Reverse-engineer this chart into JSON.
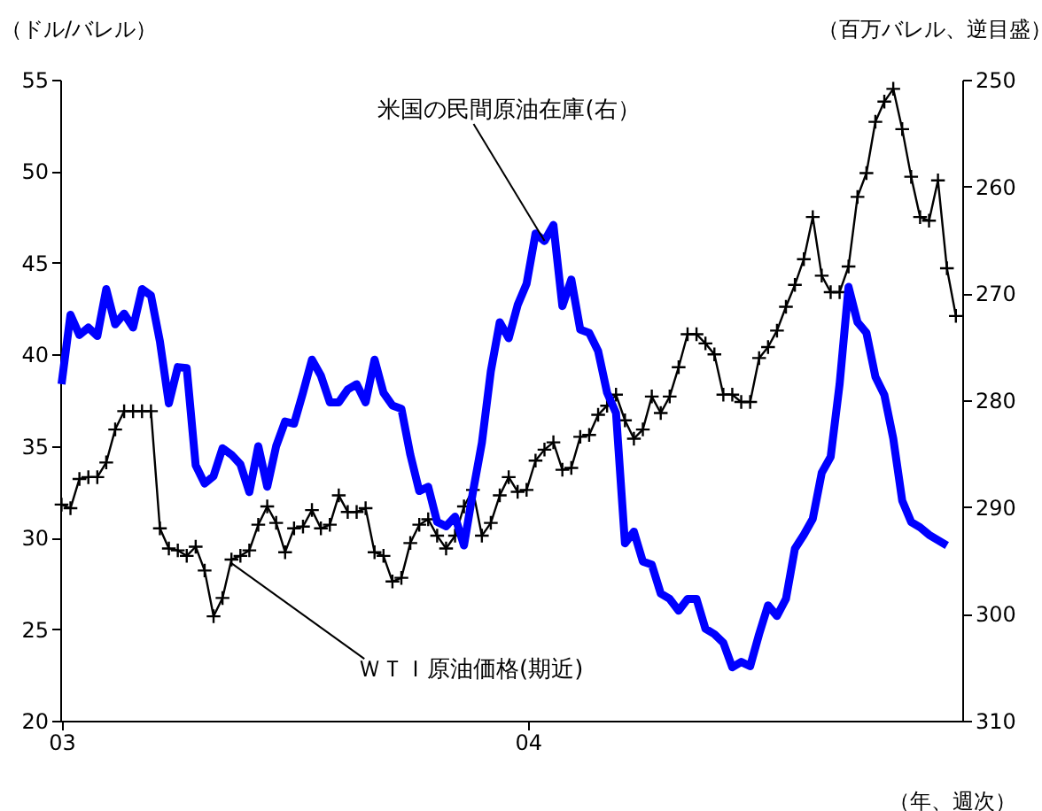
{
  "chart_data": {
    "type": "line",
    "ylabel": "（ドル/バレル）",
    "y2label": "（百万バレル、逆目盛）",
    "xlabel": "（年、週次）",
    "xlim": [
      "2002-12-31",
      "2004-12-06"
    ],
    "xticks": [
      {
        "value": "2003-01-01",
        "label": "03"
      },
      {
        "value": "2004-01-01",
        "label": "04"
      }
    ],
    "ylim": [
      20,
      55
    ],
    "yticks": [
      20,
      25,
      30,
      35,
      40,
      45,
      50,
      55
    ],
    "y2lim": [
      310,
      250
    ],
    "y2ticks": [
      250,
      260,
      270,
      280,
      290,
      300,
      310
    ],
    "grid": false,
    "x": [
      "2003-01-01",
      "2003-01-08",
      "2003-01-15",
      "2003-01-22",
      "2003-01-29",
      "2003-02-05",
      "2003-02-12",
      "2003-02-19",
      "2003-02-26",
      "2003-03-05",
      "2003-03-12",
      "2003-03-19",
      "2003-03-26",
      "2003-04-02",
      "2003-04-09",
      "2003-04-16",
      "2003-04-23",
      "2003-04-30",
      "2003-05-07",
      "2003-05-14",
      "2003-05-21",
      "2003-05-28",
      "2003-06-04",
      "2003-06-11",
      "2003-06-18",
      "2003-06-25",
      "2003-07-02",
      "2003-07-09",
      "2003-07-16",
      "2003-07-23",
      "2003-07-30",
      "2003-08-06",
      "2003-08-13",
      "2003-08-20",
      "2003-08-27",
      "2003-09-03",
      "2003-09-10",
      "2003-09-17",
      "2003-09-24",
      "2003-10-01",
      "2003-10-08",
      "2003-10-15",
      "2003-10-22",
      "2003-10-29",
      "2003-11-05",
      "2003-11-12",
      "2003-11-19",
      "2003-11-26",
      "2003-12-03",
      "2003-12-10",
      "2003-12-17",
      "2003-12-24",
      "2003-12-31",
      "2004-01-07",
      "2004-01-14",
      "2004-01-21",
      "2004-01-28",
      "2004-02-04",
      "2004-02-11",
      "2004-02-18",
      "2004-02-25",
      "2004-03-03",
      "2004-03-10",
      "2004-03-17",
      "2004-03-24",
      "2004-03-31",
      "2004-04-07",
      "2004-04-14",
      "2004-04-21",
      "2004-04-28",
      "2004-05-05",
      "2004-05-12",
      "2004-05-19",
      "2004-05-26",
      "2004-06-02",
      "2004-06-09",
      "2004-06-16",
      "2004-06-23",
      "2004-06-30",
      "2004-07-07",
      "2004-07-14",
      "2004-07-21",
      "2004-07-28",
      "2004-08-04",
      "2004-08-11",
      "2004-08-18",
      "2004-08-25",
      "2004-09-01",
      "2004-09-08",
      "2004-09-15",
      "2004-09-22",
      "2004-09-29",
      "2004-10-06",
      "2004-10-13",
      "2004-10-20",
      "2004-10-27",
      "2004-11-03",
      "2004-11-10",
      "2004-11-17",
      "2004-11-24",
      "2004-12-01"
    ],
    "series": [
      {
        "color": "#000000",
        "marker": "cross",
        "line_style": "solid",
        "values": [
          31.8,
          31.6,
          33.2,
          33.3,
          33.3,
          34.1,
          35.9,
          36.9,
          36.9,
          36.9,
          36.9,
          30.5,
          29.4,
          29.3,
          29.0,
          29.5,
          28.2,
          25.7,
          26.7,
          28.8,
          29.0,
          29.3,
          30.7,
          31.7,
          30.8,
          29.2,
          30.5,
          30.6,
          31.5,
          30.5,
          30.7,
          32.3,
          31.4,
          31.4,
          31.6,
          29.2,
          29.0,
          27.6,
          27.8,
          29.7,
          30.7,
          31.0,
          30.1,
          29.4,
          30.1,
          31.7,
          32.6,
          30.1,
          30.8,
          32.3,
          33.3,
          32.5,
          32.6,
          34.2,
          34.8,
          35.2,
          33.7,
          33.8,
          35.5,
          35.6,
          36.7,
          37.2,
          37.8,
          36.4,
          35.4,
          35.9,
          37.7,
          36.8,
          37.7,
          39.3,
          41.1,
          41.1,
          40.6,
          40.0,
          37.8,
          37.8,
          37.4,
          37.4,
          39.8,
          40.4,
          41.3,
          42.6,
          43.8,
          45.2,
          47.5,
          44.3,
          43.4,
          43.4,
          44.8,
          48.6,
          49.9,
          52.7,
          53.8,
          54.5,
          52.3,
          49.7,
          47.5,
          47.3,
          49.5,
          44.7,
          42.1
        ]
      },
      {
        "color": "#0000ff",
        "marker": "none",
        "line_style": "solid",
        "axis": "y2",
        "x": [
          "2003-01-01",
          "2003-01-08",
          "2003-01-15",
          "2003-01-22",
          "2003-01-29",
          "2003-02-05",
          "2003-02-12",
          "2003-02-19",
          "2003-02-26",
          "2003-03-05",
          "2003-03-12",
          "2003-03-19",
          "2003-03-26",
          "2003-04-02",
          "2003-04-09",
          "2003-04-16",
          "2003-04-23",
          "2003-04-30",
          "2003-05-07",
          "2003-05-14",
          "2003-05-21",
          "2003-05-28",
          "2003-06-04",
          "2003-06-11",
          "2003-06-18",
          "2003-06-25",
          "2003-07-02",
          "2003-07-09",
          "2003-07-16",
          "2003-07-23",
          "2003-07-30",
          "2003-08-06",
          "2003-08-13",
          "2003-08-20",
          "2003-08-27",
          "2003-09-03",
          "2003-09-10",
          "2003-09-17",
          "2003-09-24",
          "2003-10-01",
          "2003-10-08",
          "2003-10-15",
          "2003-10-22",
          "2003-10-29",
          "2003-11-05",
          "2003-11-12",
          "2003-11-19",
          "2003-11-26",
          "2003-12-03",
          "2003-12-10",
          "2003-12-17",
          "2003-12-24",
          "2003-12-31",
          "2004-01-07",
          "2004-01-14",
          "2004-01-21",
          "2004-01-28",
          "2004-02-04",
          "2004-02-11",
          "2004-02-18",
          "2004-02-25",
          "2004-03-03",
          "2004-03-10",
          "2004-03-17",
          "2004-03-24",
          "2004-03-31",
          "2004-04-07",
          "2004-04-14",
          "2004-04-21",
          "2004-04-28",
          "2004-05-05",
          "2004-05-12",
          "2004-05-19",
          "2004-05-26",
          "2004-06-02",
          "2004-06-09",
          "2004-06-16",
          "2004-06-23",
          "2004-06-30",
          "2004-07-07",
          "2004-07-14",
          "2004-07-21",
          "2004-07-28",
          "2004-08-04",
          "2004-08-11",
          "2004-08-18",
          "2004-08-25",
          "2004-09-01",
          "2004-09-08",
          "2004-09-15",
          "2004-09-22",
          "2004-09-29",
          "2004-10-06",
          "2004-10-13",
          "2004-10-20",
          "2004-10-27",
          "2004-11-03",
          "2004-11-10",
          "2004-11-24"
        ],
        "values": [
          278.5,
          272.0,
          273.9,
          273.2,
          274.0,
          269.6,
          272.9,
          271.9,
          273.2,
          269.6,
          270.2,
          274.5,
          280.3,
          276.9,
          277.0,
          286.1,
          287.8,
          287.1,
          284.5,
          285.1,
          286.0,
          288.6,
          284.3,
          288.1,
          284.3,
          282.0,
          282.2,
          279.3,
          276.2,
          277.7,
          280.2,
          280.2,
          279.0,
          278.5,
          280.2,
          276.2,
          279.3,
          280.5,
          280.8,
          285.1,
          288.5,
          288.1,
          291.4,
          291.8,
          290.9,
          293.6,
          288.6,
          284.0,
          277.3,
          272.7,
          274.2,
          271.1,
          269.1,
          264.4,
          265.1,
          263.6,
          271.2,
          268.7,
          273.4,
          273.7,
          275.4,
          279.3,
          281.2,
          293.4,
          292.3,
          295.1,
          295.4,
          298.1,
          298.6,
          299.7,
          298.6,
          298.6,
          301.4,
          301.9,
          302.7,
          305.0,
          304.5,
          304.9,
          301.9,
          299.2,
          300.2,
          298.6,
          293.9,
          292.6,
          291.1,
          286.8,
          285.3,
          278.5,
          269.4,
          272.7,
          273.7,
          277.8,
          279.5,
          283.6,
          289.4,
          291.4,
          291.9,
          292.6,
          293.6
        ]
      }
    ],
    "annotations": [
      {
        "text": "米国の民間原油在庫(右）",
        "x": "2004-01-14",
        "y": 46.2
      },
      {
        "text": "ＷＴＩ原油価格(期近)",
        "x": "2003-05-14",
        "y": 28.6
      }
    ]
  }
}
